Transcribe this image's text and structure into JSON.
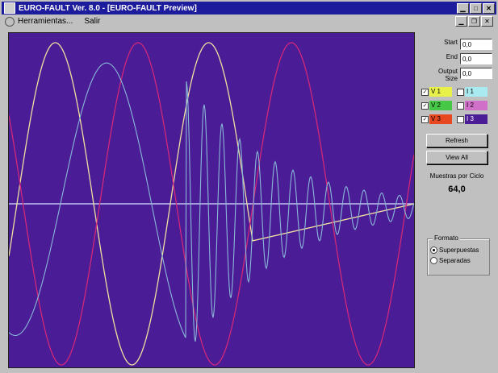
{
  "window": {
    "title": "EURO-FAULT Ver. 8.0 - [EURO-FAULT Preview]"
  },
  "menu": {
    "items": [
      "Herramientas...",
      "Salir"
    ]
  },
  "controls": {
    "start": {
      "label": "Start",
      "value": "0,0"
    },
    "end": {
      "label": "End",
      "value": "0,0"
    },
    "output_size": {
      "label": "Output Size",
      "value": "0,0"
    }
  },
  "channels": [
    {
      "label": "V 1",
      "checked": true,
      "color": "#e8f04a"
    },
    {
      "label": "I 1",
      "checked": false,
      "color": "#a8eaf0"
    },
    {
      "label": "V 2",
      "checked": true,
      "color": "#46c846"
    },
    {
      "label": "I 2",
      "checked": false,
      "color": "#d070c8"
    },
    {
      "label": "V 3",
      "checked": true,
      "color": "#e84820"
    },
    {
      "label": "I 3",
      "checked": false,
      "color": "#4a1c96"
    }
  ],
  "buttons": {
    "refresh": "Refresh",
    "view_all": "View All"
  },
  "samples": {
    "label": "Muestras por Ciclo",
    "value": "64,0"
  },
  "format": {
    "title": "Formato",
    "options": [
      "Superpuestas",
      "Separadas"
    ],
    "selected": 0
  },
  "plot": {
    "background": "#4a1c96",
    "trace_colors": [
      "#f0e0a0",
      "#d0287a",
      "#8ab8d8",
      "#c0c0f0"
    ]
  }
}
